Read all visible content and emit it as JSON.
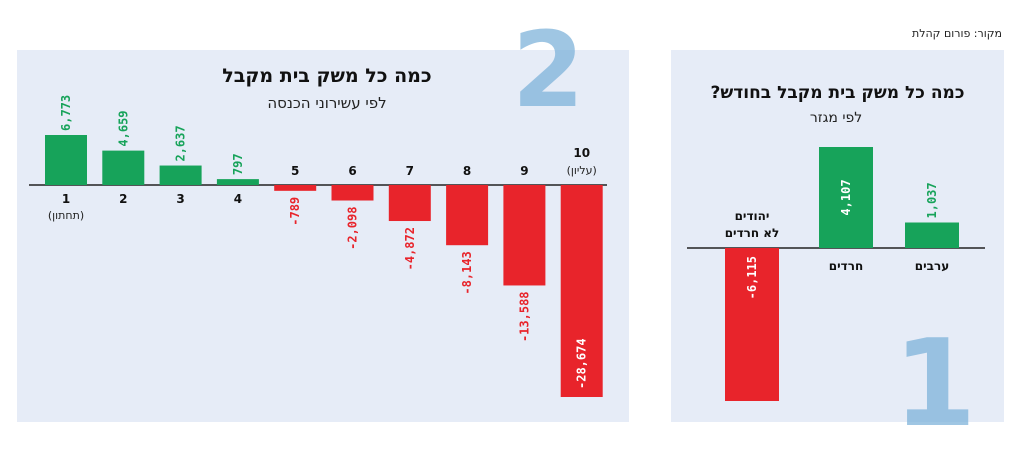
{
  "source": "מקור: פורום קהלת",
  "colors": {
    "positive": "#17a35a",
    "negative": "#e8242b",
    "panel": "#e6ecf7",
    "big_number": "#7fb3da"
  },
  "chart_data": [
    {
      "id": "by-decile",
      "type": "bar",
      "panel_number": "2",
      "title": "כמה כל משק בית מקבל",
      "subtitle": "לפי עשירוני הכנסה",
      "xlabel": "",
      "ylabel": "",
      "categories": [
        "1",
        "2",
        "3",
        "4",
        "5",
        "6",
        "7",
        "8",
        "9",
        "10"
      ],
      "category_notes": [
        "(תחתון)",
        "",
        "",
        "",
        "",
        "",
        "",
        "",
        "",
        "(עליון)"
      ],
      "values": [
        6773,
        4659,
        2637,
        797,
        -789,
        -2098,
        -4872,
        -8143,
        -13588,
        -28674
      ],
      "value_labels": [
        "6,773",
        "4,659",
        "2,637",
        "797",
        "-789",
        "-2,098",
        "-4,872",
        "-8,143",
        "-13,588",
        "-28,674"
      ],
      "ylim": [
        -28674,
        6773
      ],
      "grid": false,
      "legend": "none"
    },
    {
      "id": "by-sector",
      "type": "bar",
      "panel_number": "1",
      "title": "כמה כל משק בית מקבל בחודש?",
      "subtitle": "לפי מגזר",
      "xlabel": "",
      "ylabel": "",
      "categories": [
        "יהודים לא חרדים",
        "חרדים",
        "ערבים"
      ],
      "category_lines": [
        [
          "יהודים",
          "לא חרדים"
        ],
        [
          "חרדים"
        ],
        [
          "ערבים"
        ]
      ],
      "values": [
        -6115,
        4107,
        1037
      ],
      "value_labels": [
        "-6,115",
        "4,107",
        "1,037"
      ],
      "ylim": [
        -6115,
        4107
      ],
      "grid": false,
      "legend": "none"
    }
  ]
}
